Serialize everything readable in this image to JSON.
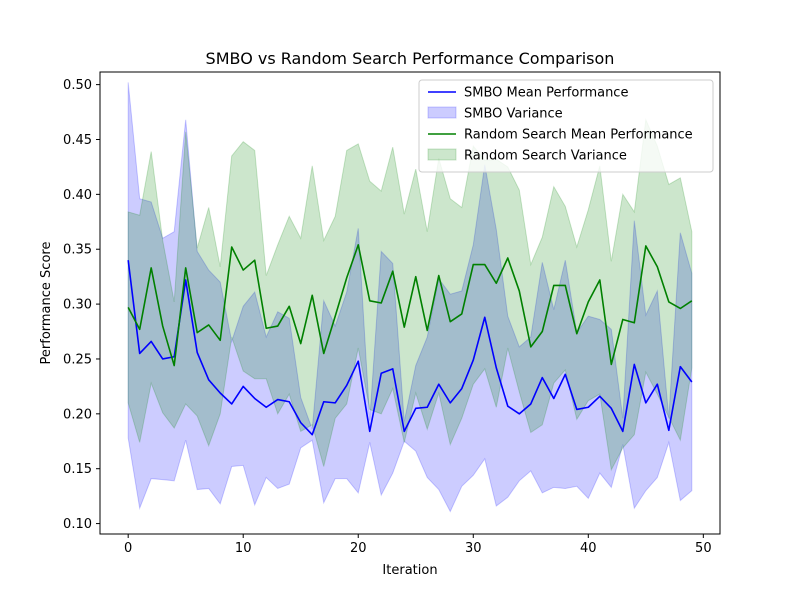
{
  "chart_data": {
    "type": "line",
    "title": "SMBO vs Random Search Performance Comparison",
    "xlabel": "Iteration",
    "ylabel": "Performance Score",
    "xlim": [
      -2.45,
      51.45
    ],
    "ylim": [
      0.0905,
      0.5115
    ],
    "xticks": [
      0,
      10,
      20,
      30,
      40,
      50
    ],
    "yticks": [
      0.1,
      0.15,
      0.2,
      0.25,
      0.3,
      0.35,
      0.4,
      0.45,
      0.5
    ],
    "legend_position": "top-right",
    "grid": false,
    "x": [
      0,
      1,
      2,
      3,
      4,
      5,
      6,
      7,
      8,
      9,
      10,
      11,
      12,
      13,
      14,
      15,
      16,
      17,
      18,
      19,
      20,
      21,
      22,
      23,
      24,
      25,
      26,
      27,
      28,
      29,
      30,
      31,
      32,
      33,
      34,
      35,
      36,
      37,
      38,
      39,
      40,
      41,
      42,
      43,
      44,
      45,
      46,
      47,
      48,
      49
    ],
    "series": [
      {
        "name": "SMBO Mean Performance",
        "kind": "line",
        "color": "#0000ff",
        "values": [
          0.34,
          0.255,
          0.266,
          0.25,
          0.252,
          0.322,
          0.256,
          0.231,
          0.219,
          0.209,
          0.225,
          0.214,
          0.206,
          0.213,
          0.211,
          0.192,
          0.181,
          0.211,
          0.21,
          0.226,
          0.248,
          0.184,
          0.237,
          0.241,
          0.184,
          0.205,
          0.206,
          0.227,
          0.21,
          0.223,
          0.249,
          0.288,
          0.242,
          0.207,
          0.2,
          0.209,
          0.233,
          0.214,
          0.236,
          0.204,
          0.206,
          0.216,
          0.205,
          0.184,
          0.245,
          0.21,
          0.227,
          0.185,
          0.243,
          0.229
        ]
      },
      {
        "name": "SMBO Variance",
        "kind": "band",
        "color": "#0000ff",
        "opacity": 0.2,
        "lower": [
          0.178,
          0.114,
          0.141,
          0.14,
          0.139,
          0.176,
          0.131,
          0.132,
          0.118,
          0.152,
          0.153,
          0.117,
          0.142,
          0.132,
          0.136,
          0.169,
          0.176,
          0.119,
          0.141,
          0.141,
          0.128,
          0.174,
          0.126,
          0.146,
          0.175,
          0.166,
          0.142,
          0.131,
          0.111,
          0.134,
          0.144,
          0.159,
          0.116,
          0.124,
          0.139,
          0.148,
          0.128,
          0.133,
          0.132,
          0.134,
          0.123,
          0.146,
          0.133,
          0.172,
          0.114,
          0.13,
          0.142,
          0.174,
          0.121,
          0.13
        ],
        "upper": [
          0.502,
          0.396,
          0.393,
          0.36,
          0.366,
          0.468,
          0.348,
          0.331,
          0.32,
          0.266,
          0.298,
          0.311,
          0.27,
          0.293,
          0.287,
          0.215,
          0.186,
          0.303,
          0.28,
          0.311,
          0.369,
          0.194,
          0.348,
          0.337,
          0.193,
          0.244,
          0.27,
          0.323,
          0.309,
          0.312,
          0.354,
          0.427,
          0.368,
          0.289,
          0.261,
          0.27,
          0.338,
          0.295,
          0.34,
          0.274,
          0.289,
          0.286,
          0.277,
          0.196,
          0.376,
          0.29,
          0.312,
          0.196,
          0.365,
          0.328
        ]
      },
      {
        "name": "Random Search Mean Performance",
        "kind": "line",
        "color": "#008000",
        "values": [
          0.297,
          0.277,
          0.333,
          0.28,
          0.244,
          0.333,
          0.274,
          0.281,
          0.267,
          0.352,
          0.331,
          0.34,
          0.278,
          0.28,
          0.298,
          0.264,
          0.308,
          0.255,
          0.289,
          0.324,
          0.354,
          0.303,
          0.301,
          0.33,
          0.279,
          0.325,
          0.276,
          0.326,
          0.284,
          0.291,
          0.336,
          0.336,
          0.319,
          0.342,
          0.312,
          0.261,
          0.275,
          0.317,
          0.317,
          0.273,
          0.302,
          0.322,
          0.245,
          0.286,
          0.283,
          0.353,
          0.334,
          0.302,
          0.296,
          0.303
        ]
      },
      {
        "name": "Random Search Variance",
        "kind": "band",
        "color": "#008000",
        "opacity": 0.2,
        "lower": [
          0.21,
          0.174,
          0.228,
          0.201,
          0.187,
          0.209,
          0.198,
          0.171,
          0.2,
          0.27,
          0.239,
          0.232,
          0.232,
          0.2,
          0.218,
          0.184,
          0.19,
          0.152,
          0.196,
          0.209,
          0.26,
          0.204,
          0.2,
          0.223,
          0.174,
          0.219,
          0.186,
          0.219,
          0.172,
          0.196,
          0.227,
          0.241,
          0.206,
          0.26,
          0.22,
          0.183,
          0.19,
          0.228,
          0.24,
          0.195,
          0.212,
          0.218,
          0.149,
          0.169,
          0.181,
          0.238,
          0.218,
          0.197,
          0.176,
          0.242
        ],
        "upper": [
          0.384,
          0.381,
          0.439,
          0.358,
          0.302,
          0.457,
          0.351,
          0.388,
          0.334,
          0.435,
          0.448,
          0.44,
          0.326,
          0.354,
          0.38,
          0.36,
          0.426,
          0.358,
          0.38,
          0.44,
          0.446,
          0.412,
          0.403,
          0.443,
          0.382,
          0.423,
          0.366,
          0.433,
          0.396,
          0.388,
          0.444,
          0.431,
          0.432,
          0.425,
          0.404,
          0.336,
          0.361,
          0.407,
          0.389,
          0.352,
          0.386,
          0.426,
          0.339,
          0.4,
          0.384,
          0.468,
          0.444,
          0.409,
          0.415,
          0.366
        ]
      }
    ]
  }
}
